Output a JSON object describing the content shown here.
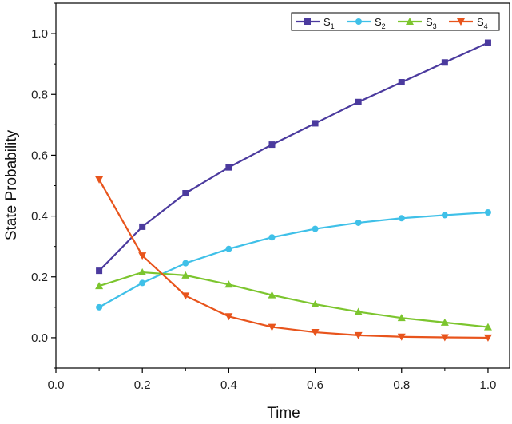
{
  "chart_data": {
    "type": "line",
    "title": "",
    "xlabel": "Time",
    "ylabel": "State Probability",
    "xlim": [
      0.0,
      1.05
    ],
    "ylim": [
      -0.1,
      1.1
    ],
    "xticks": [
      "0.0",
      "0.2",
      "0.4",
      "0.6",
      "0.8",
      "1.0"
    ],
    "yticks": [
      "0.0",
      "0.2",
      "0.4",
      "0.6",
      "0.8",
      "1.0"
    ],
    "grid": false,
    "legend_position": "top-right",
    "x": [
      0.1,
      0.2,
      0.3,
      0.4,
      0.5,
      0.6,
      0.7,
      0.8,
      0.9,
      1.0
    ],
    "series": [
      {
        "name": "S",
        "sub": "1",
        "color": "#4b3a9e",
        "marker": "square",
        "values": [
          0.22,
          0.365,
          0.475,
          0.56,
          0.635,
          0.705,
          0.775,
          0.84,
          0.905,
          0.97
        ]
      },
      {
        "name": "S",
        "sub": "2",
        "color": "#3fc0e8",
        "marker": "circle",
        "values": [
          0.1,
          0.18,
          0.245,
          0.292,
          0.33,
          0.358,
          0.378,
          0.393,
          0.403,
          0.412
        ]
      },
      {
        "name": "S",
        "sub": "3",
        "color": "#7cc52e",
        "marker": "triangle-up",
        "values": [
          0.17,
          0.215,
          0.205,
          0.175,
          0.14,
          0.11,
          0.085,
          0.065,
          0.05,
          0.035
        ]
      },
      {
        "name": "S",
        "sub": "4",
        "color": "#e8541c",
        "marker": "triangle-down",
        "values": [
          0.52,
          0.27,
          0.138,
          0.07,
          0.035,
          0.018,
          0.008,
          0.003,
          0.001,
          0.0
        ]
      }
    ]
  }
}
